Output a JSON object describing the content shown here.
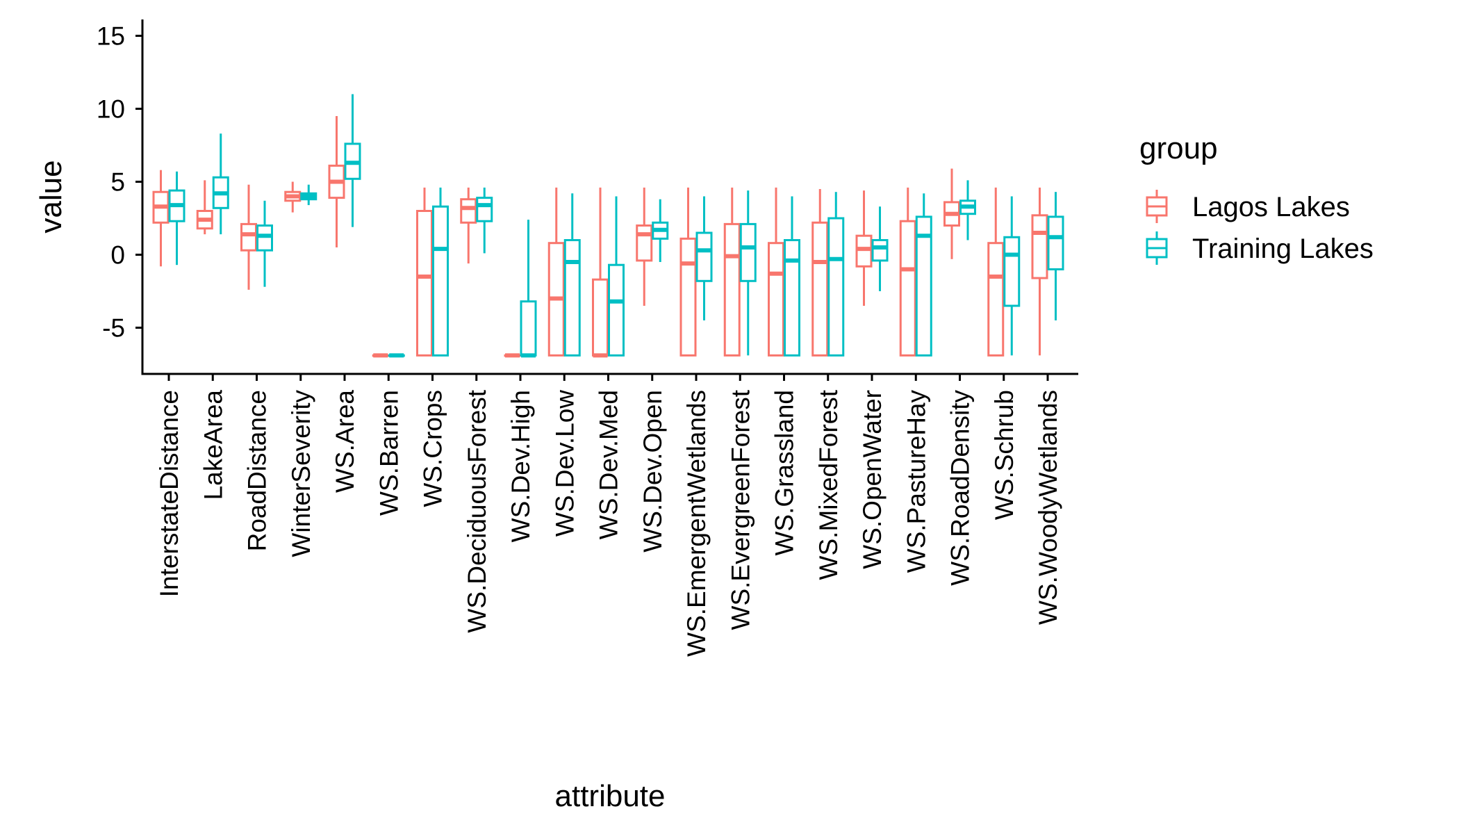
{
  "chart_data": {
    "type": "boxplot",
    "xlabel": "attribute",
    "ylabel": "value",
    "ylim": [
      -8,
      16
    ],
    "yticks": [
      -5,
      0,
      5,
      10,
      15
    ],
    "grid": false,
    "legend": {
      "title": "group",
      "placement": "right",
      "entries": [
        "Lagos Lakes",
        "Training Lakes"
      ]
    },
    "colors": {
      "Lagos Lakes": "#F8766D",
      "Training Lakes": "#00BFC4"
    },
    "categories": [
      "InterstateDistance",
      "LakeArea",
      "RoadDistance",
      "WinterSeverity",
      "WS.Area",
      "WS.Barren",
      "WS.Crops",
      "WS.DeciduousForest",
      "WS.Dev.High",
      "WS.Dev.Low",
      "WS.Dev.Med",
      "WS.Dev.Open",
      "WS.EmergentWetlands",
      "WS.EvergreenForest",
      "WS.Grassland",
      "WS.MixedForest",
      "WS.OpenWater",
      "WS.PastureHay",
      "WS.RoadDensity",
      "WS.Schrub",
      "WS.WoodyWetlands"
    ],
    "series": [
      {
        "name": "Lagos Lakes",
        "boxes": [
          {
            "min": -0.8,
            "q1": 2.2,
            "median": 3.3,
            "q3": 4.3,
            "max": 5.8
          },
          {
            "min": 1.4,
            "q1": 1.8,
            "median": 2.4,
            "q3": 3.0,
            "max": 5.1
          },
          {
            "min": -2.4,
            "q1": 0.3,
            "median": 1.4,
            "q3": 2.1,
            "max": 4.8
          },
          {
            "min": 2.9,
            "q1": 3.7,
            "median": 4.0,
            "q3": 4.3,
            "max": 5.0
          },
          {
            "min": 0.5,
            "q1": 3.9,
            "median": 5.0,
            "q3": 6.1,
            "max": 9.5
          },
          {
            "min": -6.9,
            "q1": -6.9,
            "median": -6.9,
            "q3": -6.9,
            "max": -6.9
          },
          {
            "min": -6.9,
            "q1": -6.9,
            "median": -1.5,
            "q3": 3.0,
            "max": 4.6
          },
          {
            "min": -0.6,
            "q1": 2.2,
            "median": 3.2,
            "q3": 3.8,
            "max": 4.6
          },
          {
            "min": -6.9,
            "q1": -6.9,
            "median": -6.9,
            "q3": -6.9,
            "max": -6.9
          },
          {
            "min": -6.9,
            "q1": -6.9,
            "median": -3.0,
            "q3": 0.8,
            "max": 4.6
          },
          {
            "min": -6.9,
            "q1": -6.9,
            "median": -6.9,
            "q3": -1.7,
            "max": 4.6
          },
          {
            "min": -3.5,
            "q1": -0.4,
            "median": 1.4,
            "q3": 2.0,
            "max": 4.6
          },
          {
            "min": -6.9,
            "q1": -6.9,
            "median": -0.6,
            "q3": 1.1,
            "max": 4.6
          },
          {
            "min": -6.9,
            "q1": -6.9,
            "median": -0.1,
            "q3": 2.1,
            "max": 4.6
          },
          {
            "min": -6.9,
            "q1": -6.9,
            "median": -1.3,
            "q3": 0.8,
            "max": 4.6
          },
          {
            "min": -6.9,
            "q1": -6.9,
            "median": -0.5,
            "q3": 2.2,
            "max": 4.5
          },
          {
            "min": -3.5,
            "q1": -0.8,
            "median": 0.4,
            "q3": 1.3,
            "max": 4.4
          },
          {
            "min": -6.9,
            "q1": -6.9,
            "median": -1.0,
            "q3": 2.3,
            "max": 4.6
          },
          {
            "min": -0.3,
            "q1": 2.0,
            "median": 2.8,
            "q3": 3.6,
            "max": 5.9
          },
          {
            "min": -6.9,
            "q1": -6.9,
            "median": -1.5,
            "q3": 0.8,
            "max": 4.6
          },
          {
            "min": -6.9,
            "q1": -1.6,
            "median": 1.5,
            "q3": 2.7,
            "max": 4.6
          }
        ]
      },
      {
        "name": "Training Lakes",
        "boxes": [
          {
            "min": -0.7,
            "q1": 2.3,
            "median": 3.4,
            "q3": 4.4,
            "max": 5.7
          },
          {
            "min": 1.4,
            "q1": 3.2,
            "median": 4.2,
            "q3": 5.3,
            "max": 8.3
          },
          {
            "min": -2.2,
            "q1": 0.3,
            "median": 1.3,
            "q3": 2.0,
            "max": 3.7
          },
          {
            "min": 3.4,
            "q1": 3.8,
            "median": 4.0,
            "q3": 4.2,
            "max": 4.8
          },
          {
            "min": 1.9,
            "q1": 5.2,
            "median": 6.3,
            "q3": 7.6,
            "max": 11.0
          },
          {
            "min": -6.9,
            "q1": -6.9,
            "median": -6.9,
            "q3": -6.9,
            "max": -6.9
          },
          {
            "min": -6.9,
            "q1": -6.9,
            "median": 0.4,
            "q3": 3.3,
            "max": 4.6
          },
          {
            "min": 0.1,
            "q1": 2.3,
            "median": 3.4,
            "q3": 3.9,
            "max": 4.6
          },
          {
            "min": -6.9,
            "q1": -6.9,
            "median": -6.9,
            "q3": -3.2,
            "max": 2.4
          },
          {
            "min": -6.9,
            "q1": -6.9,
            "median": -0.5,
            "q3": 1.0,
            "max": 4.2
          },
          {
            "min": -6.9,
            "q1": -6.9,
            "median": -3.2,
            "q3": -0.7,
            "max": 4.0
          },
          {
            "min": -0.5,
            "q1": 1.1,
            "median": 1.7,
            "q3": 2.2,
            "max": 3.8
          },
          {
            "min": -4.5,
            "q1": -1.8,
            "median": 0.3,
            "q3": 1.5,
            "max": 4.0
          },
          {
            "min": -6.9,
            "q1": -1.8,
            "median": 0.5,
            "q3": 2.1,
            "max": 4.4
          },
          {
            "min": -6.9,
            "q1": -6.9,
            "median": -0.4,
            "q3": 1.0,
            "max": 4.0
          },
          {
            "min": -6.9,
            "q1": -6.9,
            "median": -0.3,
            "q3": 2.5,
            "max": 4.3
          },
          {
            "min": -2.5,
            "q1": -0.4,
            "median": 0.5,
            "q3": 1.0,
            "max": 3.3
          },
          {
            "min": -6.9,
            "q1": -6.9,
            "median": 1.3,
            "q3": 2.6,
            "max": 4.2
          },
          {
            "min": 1.0,
            "q1": 2.8,
            "median": 3.3,
            "q3": 3.7,
            "max": 5.1
          },
          {
            "min": -6.9,
            "q1": -3.5,
            "median": 0.0,
            "q3": 1.2,
            "max": 4.0
          },
          {
            "min": -4.5,
            "q1": -1.0,
            "median": 1.2,
            "q3": 2.6,
            "max": 4.3
          }
        ]
      }
    ]
  }
}
